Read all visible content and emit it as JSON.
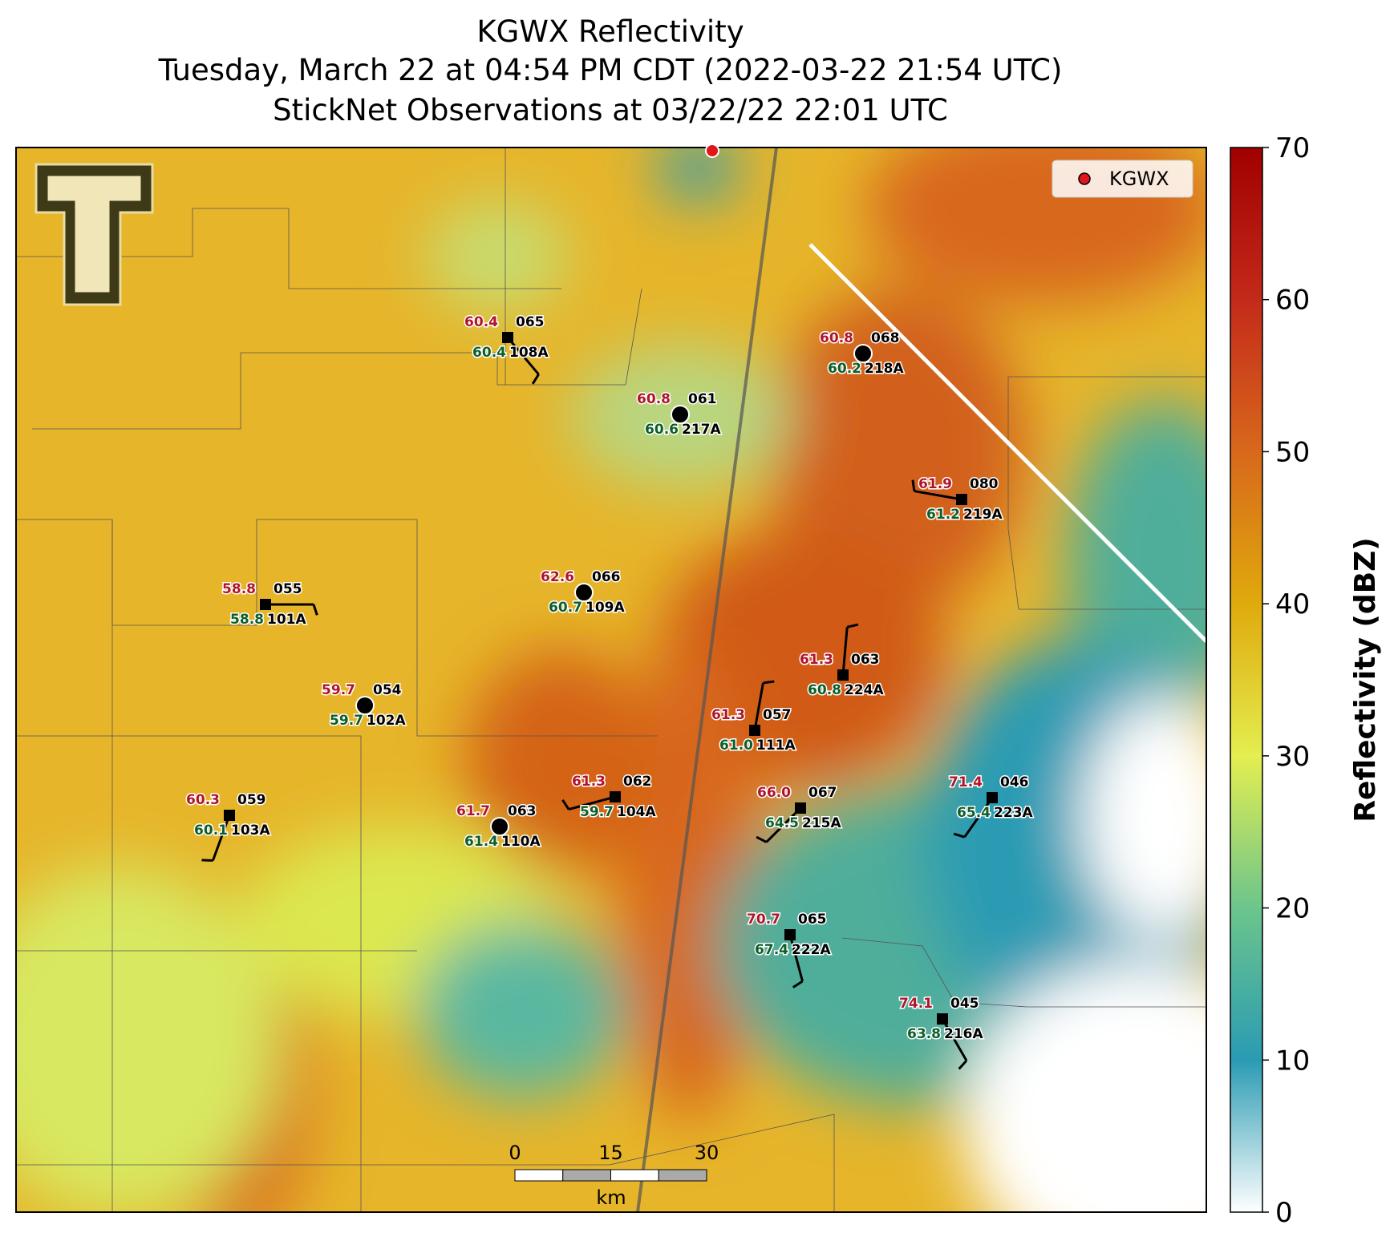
{
  "title": [
    "KGWX Reflectivity",
    "Tuesday, March 22 at 04:54 PM CDT (2022-03-22 21:54 UTC)",
    "StickNet Observations at 03/22/22 22:01 UTC"
  ],
  "legend": {
    "label": "KGWX"
  },
  "colorbar": {
    "label": "Reflectivity (dBZ)",
    "lim": [
      0,
      70
    ],
    "ticks": [
      0,
      10,
      20,
      30,
      40,
      50,
      60,
      70
    ],
    "colors": [
      "#ffffff",
      "#2a9bb3",
      "#6cc58c",
      "#e4ee50",
      "#dfaa0c",
      "#d8681c",
      "#c42a1a",
      "#a00000"
    ]
  },
  "scale_bar": {
    "ticks": [
      0,
      15,
      30
    ],
    "unit": "km"
  },
  "stations": [
    {
      "id": "108A",
      "temp": "60.4",
      "dew": "60.4",
      "code": "065"
    },
    {
      "id": "217A",
      "temp": "60.8",
      "dew": "60.6",
      "code": "061"
    },
    {
      "id": "218A",
      "temp": "60.8",
      "dew": "60.2",
      "code": "068"
    },
    {
      "id": "219A",
      "temp": "61.9",
      "dew": "61.2",
      "code": "080"
    },
    {
      "id": "109A",
      "temp": "62.6",
      "dew": "60.7",
      "code": "066"
    },
    {
      "id": "101A",
      "temp": "58.8",
      "dew": "58.8",
      "code": "055"
    },
    {
      "id": "224A",
      "temp": "61.3",
      "dew": "60.8",
      "code": "063"
    },
    {
      "id": "102A",
      "temp": "59.7",
      "dew": "59.7",
      "code": "054"
    },
    {
      "id": "111A",
      "temp": "61.3",
      "dew": "61.0",
      "code": "057"
    },
    {
      "id": "104A",
      "temp": "61.3",
      "dew": "59.7",
      "code": "062"
    },
    {
      "id": "215A",
      "temp": "66.0",
      "dew": "64.5",
      "code": "067"
    },
    {
      "id": "223A",
      "temp": "71.4",
      "dew": "65.4",
      "code": "046"
    },
    {
      "id": "103A",
      "temp": "60.3",
      "dew": "60.1",
      "code": "059"
    },
    {
      "id": "110A",
      "temp": "61.7",
      "dew": "61.4",
      "code": "063"
    },
    {
      "id": "222A",
      "temp": "70.7",
      "dew": "67.4",
      "code": "065"
    },
    {
      "id": "216A",
      "temp": "74.1",
      "dew": "63.8",
      "code": "045"
    }
  ]
}
